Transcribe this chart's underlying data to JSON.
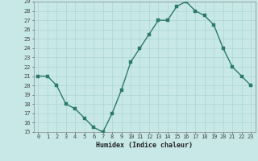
{
  "x": [
    0,
    1,
    2,
    3,
    4,
    5,
    6,
    7,
    8,
    9,
    10,
    11,
    12,
    13,
    14,
    15,
    16,
    17,
    18,
    19,
    20,
    21,
    22,
    23
  ],
  "y": [
    21,
    21,
    20,
    18,
    17.5,
    16.5,
    15.5,
    15,
    17,
    19.5,
    22.5,
    24,
    25.5,
    27,
    27,
    28.5,
    29,
    28,
    27.5,
    26.5,
    24,
    22,
    21,
    20
  ],
  "line_color": "#2d7a6a",
  "marker_color": "#2d7a6a",
  "bg_color": "#c8e8e8",
  "grid_color": "#b0d8d8",
  "xlabel": "Humidex (Indice chaleur)",
  "xlim": [
    -0.5,
    23.5
  ],
  "ylim": [
    15,
    29
  ],
  "yticks": [
    15,
    16,
    17,
    18,
    19,
    20,
    21,
    22,
    23,
    24,
    25,
    26,
    27,
    28,
    29
  ],
  "xticks": [
    0,
    1,
    2,
    3,
    4,
    5,
    6,
    7,
    8,
    9,
    10,
    11,
    12,
    13,
    14,
    15,
    16,
    17,
    18,
    19,
    20,
    21,
    22,
    23
  ],
  "xtick_labels": [
    "0",
    "1",
    "2",
    "3",
    "4",
    "5",
    "6",
    "7",
    "8",
    "9",
    "10",
    "11",
    "12",
    "13",
    "14",
    "15",
    "16",
    "17",
    "18",
    "19",
    "20",
    "21",
    "22",
    "23"
  ],
  "ytick_labels": [
    "15",
    "16",
    "17",
    "18",
    "19",
    "20",
    "21",
    "22",
    "23",
    "24",
    "25",
    "26",
    "27",
    "28",
    "29"
  ],
  "linewidth": 1.0,
  "markersize": 2.5,
  "tick_fontsize": 5.0,
  "xlabel_fontsize": 6.0
}
